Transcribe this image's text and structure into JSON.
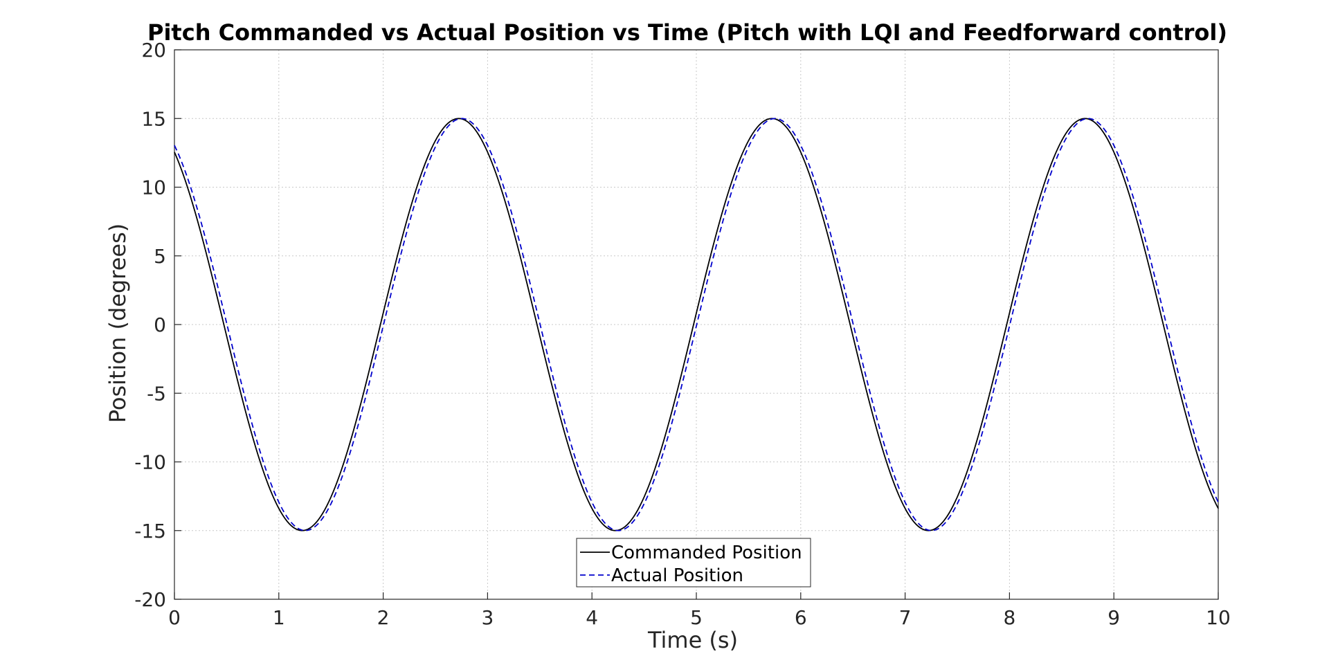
{
  "chart_data": {
    "type": "line",
    "title": "Pitch Commanded vs Actual Position vs Time (Pitch with LQI and Feedforward control)",
    "xlabel": "Time (s)",
    "ylabel": "Position (degrees)",
    "xlim": [
      0,
      10
    ],
    "ylim": [
      -20,
      20
    ],
    "xticks": [
      "0",
      "1",
      "2",
      "3",
      "4",
      "5",
      "6",
      "7",
      "8",
      "9",
      "10"
    ],
    "yticks": [
      "20",
      "15",
      "10",
      "5",
      "0",
      "-5",
      "-10",
      "-15",
      "-20"
    ],
    "grid": true,
    "legend_position": "bottom-center",
    "signal": {
      "amplitude": 15,
      "period_s": 3,
      "phase_rad": 2.15,
      "sample_step_s": 0.02
    },
    "series": [
      {
        "name": "Commanded Position",
        "color": "#000000",
        "style": "solid",
        "delay_s": 0
      },
      {
        "name": "Actual Position",
        "color": "#0000cc",
        "style": "dashed",
        "delay_s": 0.03
      }
    ]
  }
}
